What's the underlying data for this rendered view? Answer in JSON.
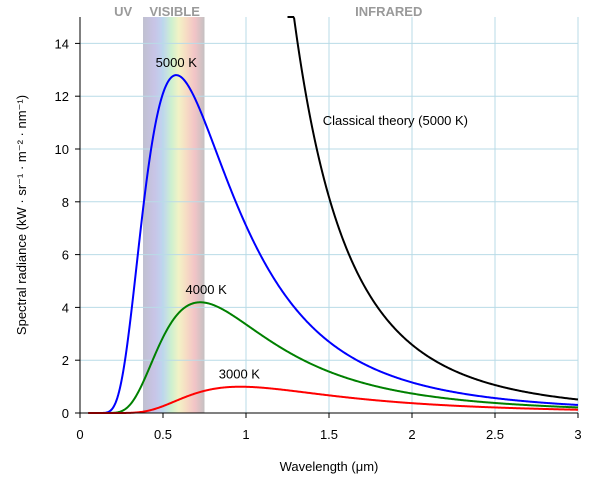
{
  "chart_data": {
    "type": "line",
    "title": "",
    "xlabel": "Wavelength (μm)",
    "ylabel": "Spectral radiance (kW · sr⁻¹ · m⁻² · nm⁻¹)",
    "xlim": [
      0,
      3
    ],
    "ylim": [
      0,
      15
    ],
    "x_ticks": [
      "0",
      "0.5",
      "1",
      "1.5",
      "2",
      "2.5",
      "3"
    ],
    "y_ticks": [
      "0",
      "2",
      "4",
      "6",
      "8",
      "10",
      "12",
      "14"
    ],
    "grid": true,
    "regions": [
      {
        "label": "UV",
        "range": [
          0,
          0.38
        ]
      },
      {
        "label": "VISIBLE",
        "range": [
          0.38,
          0.75
        ]
      },
      {
        "label": "INFRARED",
        "range": [
          0.75,
          3
        ]
      }
    ],
    "series": [
      {
        "name": "5000 K",
        "color": "#0000ff",
        "temperature_K": 5000,
        "peak": {
          "x": 0.58,
          "y": 12.7
        },
        "points": [
          [
            0.1,
            0.0
          ],
          [
            0.2,
            0.1
          ],
          [
            0.3,
            3.1
          ],
          [
            0.4,
            9.0
          ],
          [
            0.5,
            12.2
          ],
          [
            0.6,
            12.7
          ],
          [
            0.7,
            11.6
          ],
          [
            0.8,
            9.9
          ],
          [
            1.0,
            6.6
          ],
          [
            1.2,
            4.4
          ],
          [
            1.5,
            2.5
          ],
          [
            2.0,
            1.1
          ],
          [
            2.5,
            0.6
          ],
          [
            3.0,
            0.3
          ]
        ]
      },
      {
        "name": "4000 K",
        "color": "#008000",
        "temperature_K": 4000,
        "peak": {
          "x": 0.72,
          "y": 4.2
        },
        "points": [
          [
            0.2,
            0.0
          ],
          [
            0.3,
            0.4
          ],
          [
            0.4,
            2.0
          ],
          [
            0.5,
            3.5
          ],
          [
            0.6,
            4.1
          ],
          [
            0.7,
            4.2
          ],
          [
            0.8,
            4.0
          ],
          [
            1.0,
            3.3
          ],
          [
            1.2,
            2.6
          ],
          [
            1.5,
            1.7
          ],
          [
            2.0,
            0.9
          ],
          [
            2.5,
            0.5
          ],
          [
            3.0,
            0.3
          ]
        ]
      },
      {
        "name": "3000 K",
        "color": "#ff0000",
        "temperature_K": 3000,
        "peak": {
          "x": 0.97,
          "y": 1.0
        },
        "points": [
          [
            0.3,
            0.0
          ],
          [
            0.4,
            0.1
          ],
          [
            0.5,
            0.4
          ],
          [
            0.6,
            0.7
          ],
          [
            0.7,
            0.9
          ],
          [
            0.8,
            1.0
          ],
          [
            1.0,
            1.0
          ],
          [
            1.2,
            0.9
          ],
          [
            1.5,
            0.7
          ],
          [
            2.0,
            0.4
          ],
          [
            2.5,
            0.3
          ],
          [
            3.0,
            0.2
          ]
        ]
      },
      {
        "name": "Classical theory (5000 K)",
        "color": "#000000",
        "temperature_K": 5000,
        "points": [
          [
            1.3,
            15.2
          ],
          [
            1.5,
            8.6
          ],
          [
            2.0,
            2.7
          ],
          [
            2.5,
            1.1
          ],
          [
            3.0,
            0.5
          ]
        ]
      }
    ],
    "annotations": [
      {
        "text": "5000 K",
        "x": 0.58,
        "y": 13.1
      },
      {
        "text": "4000 K",
        "x": 0.76,
        "y": 4.5
      },
      {
        "text": "3000 K",
        "x": 0.96,
        "y": 1.3
      },
      {
        "text": "Classical theory (5000 K)",
        "x": 1.9,
        "y": 10.9
      }
    ]
  }
}
